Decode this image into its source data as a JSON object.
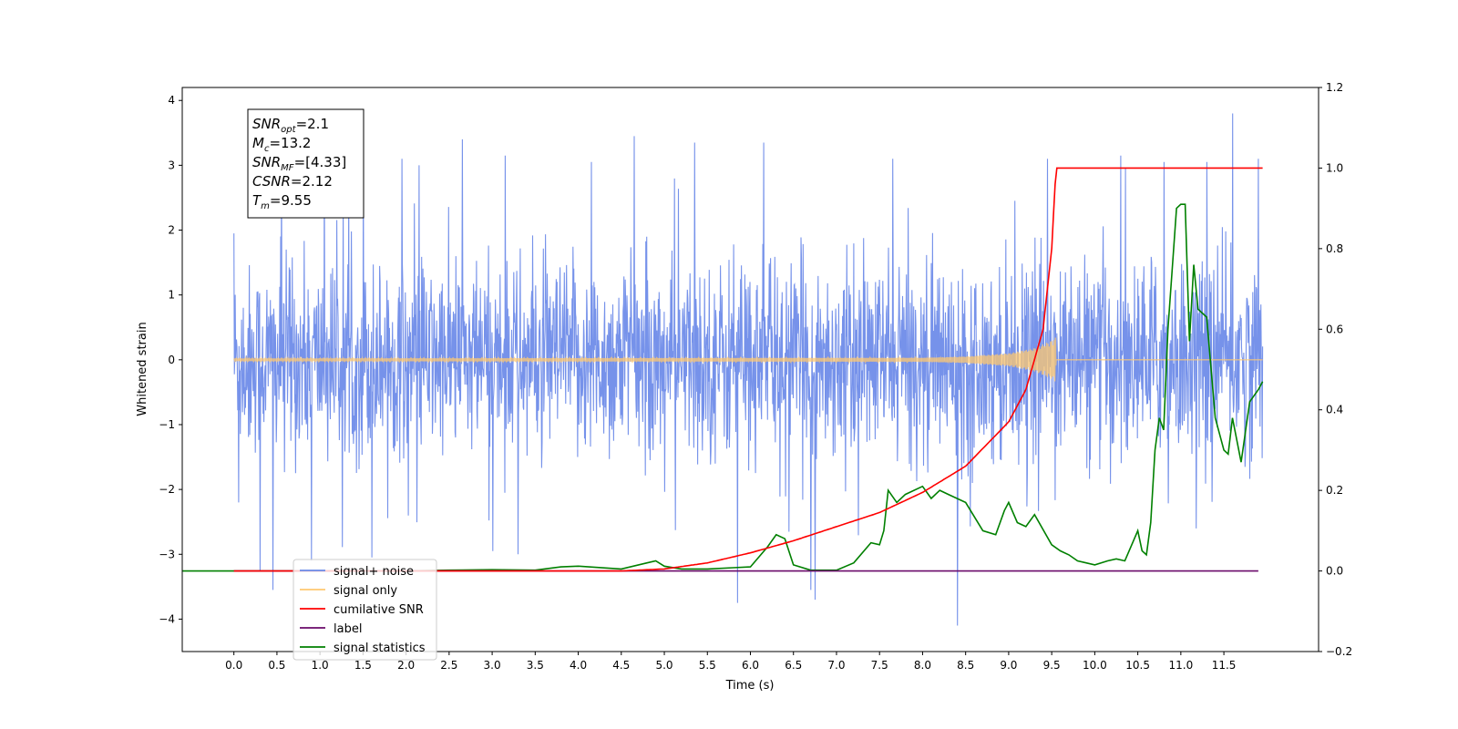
{
  "chart_data": {
    "type": "line",
    "xlabel": "Time (s)",
    "ylabel": "Whitened strain",
    "xlim": [
      -0.6,
      12.6
    ],
    "ylim": [
      -4.5,
      4.2
    ],
    "y2lim": [
      -0.2,
      1.2
    ],
    "x_ticks": [
      "0.0",
      "0.5",
      "1.0",
      "1.5",
      "2.0",
      "2.5",
      "3.0",
      "3.5",
      "4.0",
      "4.5",
      "5.0",
      "5.5",
      "6.0",
      "6.5",
      "7.0",
      "7.5",
      "8.0",
      "8.5",
      "9.0",
      "9.5",
      "10.0",
      "10.5",
      "11.0",
      "11.5"
    ],
    "x_tick_values": [
      0,
      0.5,
      1,
      1.5,
      2,
      2.5,
      3,
      3.5,
      4,
      4.5,
      5,
      5.5,
      6,
      6.5,
      7,
      7.5,
      8,
      8.5,
      9,
      9.5,
      10,
      10.5,
      11,
      11.5
    ],
    "y_ticks": [
      "−4",
      "−3",
      "−2",
      "−1",
      "0",
      "1",
      "2",
      "3",
      "4"
    ],
    "y_tick_values": [
      -4,
      -3,
      -2,
      -1,
      0,
      1,
      2,
      3,
      4
    ],
    "y2_ticks": [
      "−0.2",
      "0.0",
      "0.2",
      "0.4",
      "0.6",
      "0.8",
      "1.0",
      "1.2"
    ],
    "y2_tick_values": [
      -0.2,
      0,
      0.2,
      0.4,
      0.6,
      0.8,
      1.0,
      1.2
    ],
    "grid": false,
    "legend_position": "bottom-left",
    "annotation": [
      {
        "base": "SNR",
        "sub": "opt",
        "value": "=2.1"
      },
      {
        "base": "M",
        "sub": "c",
        "value": "=13.2"
      },
      {
        "base": "SNR",
        "sub": "MF",
        "value": "=[4.33]"
      },
      {
        "base": "CSNR",
        "sub": "",
        "value": "=2.12"
      },
      {
        "base": "T",
        "sub": "m",
        "value": "=9.55"
      }
    ],
    "legend": [
      {
        "label": "signal+ noise",
        "color": "#6a89e8"
      },
      {
        "label": "signal only",
        "color": "#ffc870"
      },
      {
        "label": "cumilative SNR",
        "color": "#ff0000"
      },
      {
        "label": "label",
        "color": "#6a0a6a"
      },
      {
        "label": "signal statistics",
        "color": "#008000"
      }
    ],
    "series": [
      {
        "name": "signal+ noise",
        "axis": "left",
        "color": "#6a89e8",
        "x_range": [
          0.0,
          11.95
        ],
        "display": "dense noise band, approx +/-1.6 with spikes",
        "peaks": [
          {
            "x": 0.0,
            "y": 1.95
          },
          {
            "x": 0.05,
            "y": -2.2
          },
          {
            "x": 0.3,
            "y": -3.25
          },
          {
            "x": 0.45,
            "y": -3.55
          },
          {
            "x": 0.55,
            "y": 3.25
          },
          {
            "x": 0.9,
            "y": -3.1
          },
          {
            "x": 1.05,
            "y": 3.3
          },
          {
            "x": 1.5,
            "y": 3.35
          },
          {
            "x": 1.6,
            "y": -3.05
          },
          {
            "x": 1.95,
            "y": 3.1
          },
          {
            "x": 2.15,
            "y": 3.0
          },
          {
            "x": 2.65,
            "y": 3.4
          },
          {
            "x": 3.15,
            "y": 3.15
          },
          {
            "x": 3.3,
            "y": -3.0
          },
          {
            "x": 4.15,
            "y": 3.05
          },
          {
            "x": 4.65,
            "y": 3.45
          },
          {
            "x": 5.35,
            "y": 3.35
          },
          {
            "x": 5.85,
            "y": -3.75
          },
          {
            "x": 6.15,
            "y": 3.35
          },
          {
            "x": 6.7,
            "y": -3.55
          },
          {
            "x": 6.75,
            "y": -3.7
          },
          {
            "x": 7.65,
            "y": 3.1
          },
          {
            "x": 8.4,
            "y": -4.1
          },
          {
            "x": 9.45,
            "y": 3.1
          },
          {
            "x": 10.3,
            "y": 3.15
          },
          {
            "x": 10.8,
            "y": 3.05
          },
          {
            "x": 11.3,
            "y": 3.05
          },
          {
            "x": 11.6,
            "y": 3.8
          },
          {
            "x": 11.9,
            "y": 3.1
          }
        ]
      },
      {
        "name": "signal only",
        "axis": "left",
        "color": "#ffc870",
        "x": [
          0.0,
          8.0,
          8.5,
          9.0,
          9.3,
          9.5,
          9.55,
          11.95
        ],
        "amplitude": [
          0.02,
          0.03,
          0.05,
          0.1,
          0.18,
          0.3,
          0.35,
          0.0
        ]
      },
      {
        "name": "cumilative SNR",
        "axis": "right",
        "color": "#ff0000",
        "x": [
          0.0,
          4.5,
          5.0,
          5.5,
          6.0,
          6.5,
          7.0,
          7.5,
          8.0,
          8.5,
          9.0,
          9.2,
          9.4,
          9.5,
          9.55,
          11.95
        ],
        "y": [
          0.0,
          0.0,
          0.005,
          0.02,
          0.045,
          0.075,
          0.11,
          0.145,
          0.195,
          0.26,
          0.37,
          0.45,
          0.6,
          0.8,
          1.0,
          1.0
        ]
      },
      {
        "name": "label",
        "axis": "right",
        "color": "#6a0a6a",
        "x": [
          0.0,
          11.9
        ],
        "y": [
          0.0,
          0.0
        ]
      },
      {
        "name": "signal statistics",
        "axis": "right",
        "color": "#008000",
        "x": [
          -0.6,
          0.0,
          1.0,
          2.0,
          2.5,
          3.0,
          3.5,
          3.8,
          4.0,
          4.5,
          4.8,
          4.9,
          5.0,
          5.2,
          5.5,
          5.8,
          6.0,
          6.2,
          6.3,
          6.4,
          6.5,
          6.7,
          7.0,
          7.2,
          7.4,
          7.5,
          7.55,
          7.6,
          7.7,
          7.8,
          8.0,
          8.1,
          8.2,
          8.3,
          8.5,
          8.7,
          8.85,
          8.95,
          9.0,
          9.1,
          9.2,
          9.3,
          9.5,
          9.6,
          9.7,
          9.8,
          9.9,
          10.0,
          10.15,
          10.25,
          10.35,
          10.5,
          10.55,
          10.6,
          10.65,
          10.7,
          10.75,
          10.8,
          10.85,
          10.9,
          10.95,
          11.0,
          11.05,
          11.1,
          11.15,
          11.2,
          11.3,
          11.4,
          11.5,
          11.55,
          11.6,
          11.7,
          11.8,
          11.9,
          11.95
        ],
        "y": [
          0.0,
          0.0,
          0.0,
          0.0,
          0.002,
          0.003,
          0.002,
          0.01,
          0.012,
          0.005,
          0.02,
          0.025,
          0.012,
          0.005,
          0.005,
          0.008,
          0.01,
          0.06,
          0.09,
          0.08,
          0.015,
          0.002,
          0.002,
          0.02,
          0.07,
          0.065,
          0.1,
          0.2,
          0.17,
          0.19,
          0.21,
          0.18,
          0.2,
          0.19,
          0.17,
          0.1,
          0.09,
          0.15,
          0.17,
          0.12,
          0.11,
          0.14,
          0.065,
          0.05,
          0.04,
          0.025,
          0.02,
          0.015,
          0.025,
          0.03,
          0.025,
          0.1,
          0.05,
          0.04,
          0.12,
          0.3,
          0.38,
          0.35,
          0.6,
          0.75,
          0.9,
          0.91,
          0.91,
          0.57,
          0.76,
          0.65,
          0.63,
          0.38,
          0.3,
          0.29,
          0.38,
          0.27,
          0.42,
          0.45,
          0.47
        ]
      }
    ]
  }
}
